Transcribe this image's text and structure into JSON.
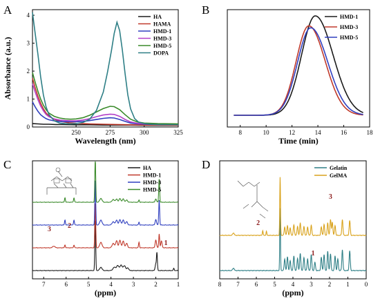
{
  "chart_data": [
    {
      "panel": "A",
      "type": "line",
      "xlabel": "Wavelength (nm)",
      "ylabel": "Absorbance (a.u.)",
      "xlim": [
        218,
        325
      ],
      "ylim": [
        0,
        4.2
      ],
      "xticks": [
        "250",
        "275",
        "300",
        "325"
      ],
      "yticks": [
        "0",
        "1",
        "2",
        "3",
        "4"
      ],
      "legend_position": "top-right",
      "series": [
        {
          "name": "HA",
          "color": "#1a1a1a",
          "x": [
            218,
            222,
            226,
            230,
            235,
            240,
            250,
            260,
            270,
            280,
            290,
            300,
            310,
            325
          ],
          "y": [
            0.12,
            0.11,
            0.1,
            0.1,
            0.09,
            0.09,
            0.08,
            0.08,
            0.07,
            0.07,
            0.07,
            0.06,
            0.06,
            0.06
          ]
        },
        {
          "name": "HAMA",
          "color": "#c0392b",
          "x": [
            218,
            220,
            222,
            224,
            226,
            228,
            230,
            233,
            236,
            240,
            245,
            250,
            260,
            270,
            280,
            290,
            300,
            310,
            325
          ],
          "y": [
            1.75,
            1.4,
            1.1,
            0.85,
            0.65,
            0.5,
            0.4,
            0.3,
            0.24,
            0.19,
            0.15,
            0.13,
            0.11,
            0.1,
            0.09,
            0.08,
            0.07,
            0.07,
            0.06
          ]
        },
        {
          "name": "HMD-1",
          "color": "#2f3fbf",
          "x": [
            218,
            220,
            222,
            224,
            226,
            228,
            230,
            234,
            238,
            242,
            246,
            250,
            255,
            260,
            265,
            270,
            275,
            278,
            282,
            286,
            290,
            295,
            300,
            310,
            325
          ],
          "y": [
            0.9,
            0.72,
            0.56,
            0.44,
            0.36,
            0.3,
            0.26,
            0.22,
            0.2,
            0.19,
            0.19,
            0.19,
            0.2,
            0.23,
            0.27,
            0.31,
            0.33,
            0.32,
            0.27,
            0.2,
            0.14,
            0.11,
            0.1,
            0.09,
            0.08
          ]
        },
        {
          "name": "HMD-3",
          "color": "#b23fc8",
          "x": [
            218,
            220,
            222,
            224,
            226,
            228,
            230,
            234,
            238,
            242,
            246,
            250,
            255,
            260,
            265,
            270,
            275,
            278,
            282,
            286,
            290,
            295,
            300,
            310,
            325
          ],
          "y": [
            1.55,
            1.25,
            0.98,
            0.75,
            0.58,
            0.45,
            0.37,
            0.29,
            0.25,
            0.23,
            0.22,
            0.22,
            0.25,
            0.3,
            0.37,
            0.43,
            0.46,
            0.45,
            0.38,
            0.27,
            0.18,
            0.13,
            0.11,
            0.1,
            0.09
          ]
        },
        {
          "name": "HMD-5",
          "color": "#3a8a2a",
          "x": [
            218,
            220,
            222,
            224,
            226,
            228,
            230,
            234,
            238,
            242,
            246,
            250,
            255,
            260,
            265,
            270,
            275,
            278,
            282,
            286,
            290,
            295,
            300,
            310,
            325
          ],
          "y": [
            1.95,
            1.6,
            1.28,
            1.0,
            0.78,
            0.62,
            0.5,
            0.38,
            0.32,
            0.29,
            0.28,
            0.29,
            0.33,
            0.42,
            0.54,
            0.66,
            0.74,
            0.73,
            0.62,
            0.44,
            0.28,
            0.18,
            0.14,
            0.12,
            0.11
          ]
        },
        {
          "name": "DOPA",
          "color": "#2e7f86",
          "x": [
            218,
            220,
            222,
            224,
            226,
            228,
            230,
            234,
            238,
            242,
            246,
            250,
            255,
            260,
            265,
            270,
            273,
            276,
            278,
            280,
            282,
            284,
            286,
            288,
            290,
            293,
            296,
            300,
            305,
            310,
            325
          ],
          "y": [
            4.1,
            3.35,
            2.6,
            1.8,
            1.15,
            0.72,
            0.45,
            0.22,
            0.14,
            0.12,
            0.11,
            0.12,
            0.16,
            0.28,
            0.6,
            1.25,
            1.95,
            2.75,
            3.35,
            3.75,
            3.45,
            2.75,
            1.9,
            1.15,
            0.65,
            0.3,
            0.17,
            0.12,
            0.1,
            0.09,
            0.08
          ]
        }
      ]
    },
    {
      "panel": "B",
      "type": "line",
      "xlabel": "Time (min)",
      "ylabel": "",
      "xlim": [
        7,
        18
      ],
      "xticks": [
        "8",
        "10",
        "12",
        "14",
        "16",
        "18"
      ],
      "legend_position": "top-right",
      "series": [
        {
          "name": "HMD-1",
          "color": "#1a1a1a",
          "center": 13.8,
          "width": 1.25,
          "height": 1.0
        },
        {
          "name": "HMD-3",
          "color": "#c0392b",
          "center": 13.3,
          "width": 1.15,
          "height": 0.9
        },
        {
          "name": "HMD-5",
          "color": "#2f3fbf",
          "center": 13.45,
          "width": 1.2,
          "height": 0.88
        }
      ]
    },
    {
      "panel": "C",
      "type": "line",
      "xlabel": "(ppm)",
      "ylabel": "",
      "xlim": [
        7.5,
        1.0
      ],
      "xticks": [
        "7",
        "6",
        "5",
        "4",
        "3",
        "2",
        "1"
      ],
      "legend_position": "top-right",
      "annotations": [
        "3",
        "2",
        "1"
      ],
      "series": [
        {
          "name": "HA",
          "color": "#1a1a1a",
          "offset": 0.0,
          "peaks": [
            [
              4.7,
              9.0,
              0.02
            ],
            [
              4.45,
              0.6,
              0.05
            ],
            [
              3.85,
              0.6,
              0.06
            ],
            [
              3.7,
              0.9,
              0.05
            ],
            [
              3.55,
              1.0,
              0.05
            ],
            [
              3.4,
              0.9,
              0.05
            ],
            [
              3.25,
              0.5,
              0.04
            ],
            [
              2.0,
              1.2,
              0.03
            ],
            [
              1.95,
              3.0,
              0.02
            ],
            [
              1.2,
              0.4,
              0.02
            ]
          ]
        },
        {
          "name": "HMD-1",
          "color": "#c0392b",
          "offset": 1.5,
          "peaks": [
            [
              6.55,
              0.3,
              0.05
            ],
            [
              6.05,
              0.5,
              0.02
            ],
            [
              5.65,
              0.5,
              0.02
            ],
            [
              4.7,
              8.0,
              0.02
            ],
            [
              4.45,
              1.0,
              0.05
            ],
            [
              3.9,
              0.8,
              0.05
            ],
            [
              3.75,
              1.3,
              0.04
            ],
            [
              3.6,
              1.4,
              0.04
            ],
            [
              3.45,
              1.2,
              0.04
            ],
            [
              3.3,
              0.8,
              0.04
            ],
            [
              2.75,
              1.0,
              0.02
            ],
            [
              2.0,
              1.4,
              0.03
            ],
            [
              1.85,
              2.5,
              0.02
            ],
            [
              1.75,
              1.2,
              0.03
            ]
          ]
        },
        {
          "name": "HMD-3",
          "color": "#2f3fbf",
          "offset": 3.0,
          "peaks": [
            [
              6.05,
              0.9,
              0.02
            ],
            [
              5.65,
              0.9,
              0.02
            ],
            [
              4.7,
              8.0,
              0.02
            ],
            [
              4.45,
              0.9,
              0.05
            ],
            [
              3.9,
              0.6,
              0.05
            ],
            [
              3.75,
              0.9,
              0.04
            ],
            [
              3.6,
              1.0,
              0.04
            ],
            [
              3.45,
              0.9,
              0.04
            ],
            [
              3.3,
              0.6,
              0.04
            ],
            [
              2.75,
              0.5,
              0.02
            ],
            [
              2.0,
              1.0,
              0.03
            ],
            [
              1.85,
              4.5,
              0.02
            ]
          ]
        },
        {
          "name": "HMD-5",
          "color": "#3a8a2a",
          "offset": 4.5,
          "peaks": [
            [
              6.05,
              0.8,
              0.02
            ],
            [
              5.65,
              0.8,
              0.02
            ],
            [
              4.7,
              8.0,
              0.02
            ],
            [
              4.45,
              0.7,
              0.05
            ],
            [
              3.9,
              0.5,
              0.05
            ],
            [
              3.75,
              0.6,
              0.04
            ],
            [
              3.6,
              0.7,
              0.04
            ],
            [
              3.45,
              0.6,
              0.04
            ],
            [
              3.3,
              0.4,
              0.04
            ],
            [
              2.75,
              0.4,
              0.02
            ],
            [
              2.0,
              0.6,
              0.03
            ],
            [
              1.85,
              4.2,
              0.02
            ]
          ]
        }
      ]
    },
    {
      "panel": "D",
      "type": "line",
      "xlabel": "(ppm)",
      "ylabel": "",
      "xlim": [
        8.0,
        0.0
      ],
      "xticks": [
        "8",
        "7",
        "6",
        "5",
        "4",
        "3",
        "2",
        "1",
        "0"
      ],
      "legend_position": "top-right",
      "annotations": [
        "3",
        "2",
        "1"
      ],
      "series": [
        {
          "name": "Gelatin",
          "color": "#2e7f86",
          "offset": 0.0,
          "peaks": [
            [
              7.25,
              0.3,
              0.04
            ],
            [
              4.7,
              7.5,
              0.02
            ],
            [
              4.45,
              1.4,
              0.03
            ],
            [
              4.3,
              1.7,
              0.03
            ],
            [
              4.15,
              1.2,
              0.03
            ],
            [
              3.95,
              1.8,
              0.03
            ],
            [
              3.75,
              1.5,
              0.03
            ],
            [
              3.6,
              2.1,
              0.03
            ],
            [
              3.4,
              1.6,
              0.03
            ],
            [
              3.2,
              1.4,
              0.03
            ],
            [
              3.0,
              1.9,
              0.03
            ],
            [
              2.8,
              1.0,
              0.03
            ],
            [
              2.45,
              1.6,
              0.03
            ],
            [
              2.3,
              1.9,
              0.03
            ],
            [
              2.1,
              2.3,
              0.03
            ],
            [
              1.95,
              2.0,
              0.03
            ],
            [
              1.7,
              1.8,
              0.03
            ],
            [
              1.55,
              1.4,
              0.03
            ],
            [
              1.3,
              2.5,
              0.03
            ],
            [
              0.9,
              2.4,
              0.03
            ]
          ]
        },
        {
          "name": "GelMA",
          "color": "#d9a21b",
          "offset": 3.4,
          "peaks": [
            [
              7.25,
              0.3,
              0.04
            ],
            [
              5.65,
              0.6,
              0.02
            ],
            [
              5.45,
              0.5,
              0.02
            ],
            [
              4.7,
              7.0,
              0.02
            ],
            [
              4.45,
              1.0,
              0.03
            ],
            [
              4.3,
              1.2,
              0.03
            ],
            [
              4.15,
              0.9,
              0.03
            ],
            [
              3.95,
              1.3,
              0.03
            ],
            [
              3.75,
              1.1,
              0.03
            ],
            [
              3.6,
              1.5,
              0.03
            ],
            [
              3.4,
              1.1,
              0.03
            ],
            [
              3.2,
              1.0,
              0.03
            ],
            [
              3.0,
              1.2,
              0.03
            ],
            [
              2.45,
              1.0,
              0.03
            ],
            [
              2.3,
              1.3,
              0.03
            ],
            [
              2.1,
              1.5,
              0.03
            ],
            [
              1.95,
              1.9,
              0.03
            ],
            [
              1.85,
              1.6,
              0.03
            ],
            [
              1.7,
              1.2,
              0.03
            ],
            [
              1.3,
              1.9,
              0.03
            ],
            [
              0.9,
              1.8,
              0.03
            ]
          ]
        }
      ]
    }
  ],
  "panel_letters": [
    "A",
    "B",
    "C",
    "D"
  ],
  "colors": {
    "axis": "#000000",
    "annotation": "#8b1a1a"
  }
}
